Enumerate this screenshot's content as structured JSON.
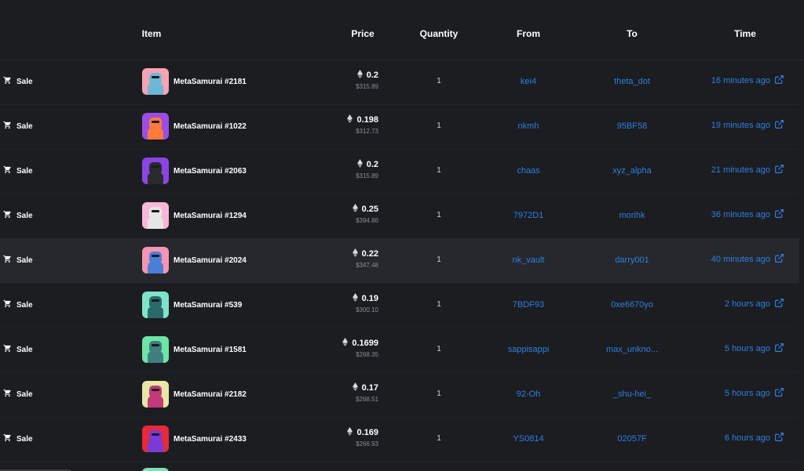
{
  "columns": {
    "item": "Item",
    "price": "Price",
    "quantity": "Quantity",
    "from": "From",
    "to": "To",
    "time": "Time"
  },
  "colors": {
    "accent_link": "#2f7fe0",
    "background": "#1b1d21",
    "highlight_row": "#25282c"
  },
  "rows": [
    {
      "event": "Sale",
      "item": "MetaSamurai #2181",
      "price": "0.2",
      "usd": "$315.89",
      "qty": "1",
      "from": "kei4",
      "to": "theta_dot",
      "time": "16 minutes ago",
      "bg": "#f7a3b3",
      "fg": "#6fb7d6"
    },
    {
      "event": "Sale",
      "item": "MetaSamurai #1022",
      "price": "0.198",
      "usd": "$312.73",
      "qty": "1",
      "from": "nkmh",
      "to": "95BF58",
      "time": "19 minutes ago",
      "bg": "#9b4de6",
      "fg": "#ff7a3a"
    },
    {
      "event": "Sale",
      "item": "MetaSamurai #2063",
      "price": "0.2",
      "usd": "$315.89",
      "qty": "1",
      "from": "chaas",
      "to": "xyz_alpha",
      "time": "21 minutes ago",
      "bg": "#8a45e6",
      "fg": "#2a2a2a"
    },
    {
      "event": "Sale",
      "item": "MetaSamurai #1294",
      "price": "0.25",
      "usd": "$394.86",
      "qty": "1",
      "from": "7972D1",
      "to": "morihk",
      "time": "36 minutes ago",
      "bg": "#f7b7d6",
      "fg": "#e6e6e6"
    },
    {
      "event": "Sale",
      "item": "MetaSamurai #2024",
      "price": "0.22",
      "usd": "$347.48",
      "qty": "1",
      "from": "nk_vault",
      "to": "darry001",
      "time": "40 minutes ago",
      "bg": "#f595b3",
      "fg": "#4a7fd6",
      "highlight": true
    },
    {
      "event": "Sale",
      "item": "MetaSamurai #539",
      "price": "0.19",
      "usd": "$300.10",
      "qty": "1",
      "from": "7BDF93",
      "to": "0xe6670yo",
      "time": "2 hours ago",
      "bg": "#7fe3c9",
      "fg": "#2a6a6a"
    },
    {
      "event": "Sale",
      "item": "MetaSamurai #1581",
      "price": "0.1699",
      "usd": "$268.35",
      "qty": "1",
      "from": "sappisappi",
      "to": "max_unkno...",
      "time": "5 hours ago",
      "bg": "#6ee3a6",
      "fg": "#3f7f7f"
    },
    {
      "event": "Sale",
      "item": "MetaSamurai #2182",
      "price": "0.17",
      "usd": "$268.51",
      "qty": "1",
      "from": "92-Oh",
      "to": "_shu-hei_",
      "time": "5 hours ago",
      "bg": "#e6e6a6",
      "fg": "#c23a7a"
    },
    {
      "event": "Sale",
      "item": "MetaSamurai #2433",
      "price": "0.169",
      "usd": "$266.93",
      "qty": "1",
      "from": "YS0814",
      "to": "02057F",
      "time": "6 hours ago",
      "bg": "#e62a3a",
      "fg": "#7a3ad6"
    }
  ]
}
